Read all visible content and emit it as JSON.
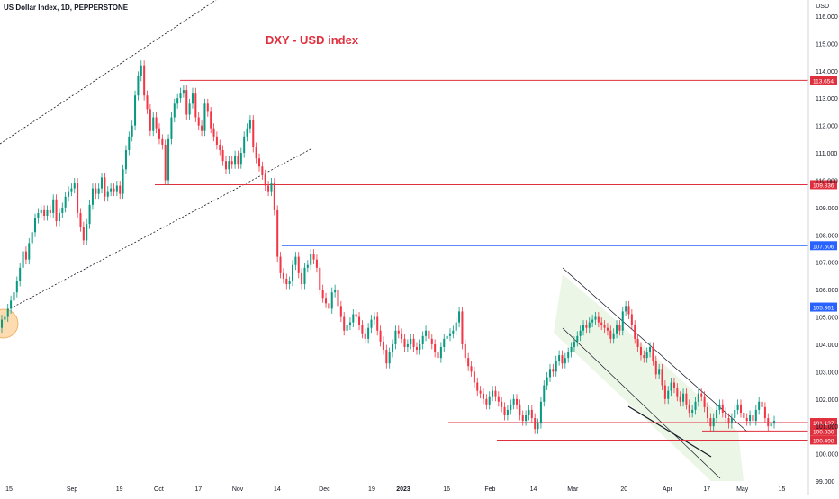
{
  "header": {
    "symbol": "US Dollar Index, 1D, PEPPERSTONE"
  },
  "axis_unit": "USD",
  "chart_data": {
    "type": "candlestick",
    "title": "DXY - USD index",
    "ylim": [
      99.0,
      116.0
    ],
    "y_ticks": [
      99.0,
      100.0,
      101.0,
      102.0,
      103.0,
      104.0,
      105.0,
      106.0,
      107.0,
      108.0,
      109.0,
      110.0,
      111.0,
      112.0,
      113.0,
      114.0,
      115.0,
      116.0
    ],
    "x_ticks": [
      "15",
      "Sep",
      "19",
      "Oct",
      "17",
      "Nov",
      "14",
      "Dec",
      "19",
      "2023",
      "16",
      "Feb",
      "14",
      "Mar",
      "20",
      "Apr",
      "17",
      "May",
      "15"
    ],
    "levels": [
      {
        "value": 113.654,
        "label": "113.654",
        "color": "#e0303e"
      },
      {
        "value": 109.836,
        "label": "109.836",
        "color": "#e0303e"
      },
      {
        "value": 107.606,
        "label": "107.606",
        "color": "#2962ff"
      },
      {
        "value": 105.361,
        "label": "105.361",
        "color": "#2962ff"
      },
      {
        "value": 101.137,
        "label": "101.137",
        "color": "#e0303e"
      },
      {
        "value": 100.83,
        "label": "100.830",
        "color": "#e0303e"
      },
      {
        "value": 100.498,
        "label": "100.498",
        "color": "#e0303e"
      }
    ],
    "closes": [
      104.9,
      105.0,
      105.3,
      105.6,
      105.9,
      106.3,
      106.8,
      107.4,
      107.1,
      107.7,
      108.1,
      108.6,
      108.8,
      108.9,
      108.7,
      108.9,
      108.8,
      109.3,
      108.5,
      108.8,
      109.0,
      109.4,
      109.6,
      109.7,
      109.9,
      108.8,
      108.3,
      107.8,
      108.4,
      109.1,
      109.7,
      109.5,
      109.7,
      110.1,
      109.4,
      109.6,
      109.7,
      109.6,
      109.8,
      109.5,
      110.4,
      111.1,
      111.6,
      112.0,
      113.1,
      113.8,
      114.2,
      113.1,
      112.6,
      111.8,
      112.3,
      111.9,
      111.5,
      111.3,
      110.0,
      111.5,
      112.3,
      112.8,
      113.0,
      113.2,
      113.3,
      112.4,
      112.8,
      113.2,
      112.3,
      112.0,
      111.8,
      112.8,
      112.5,
      111.9,
      111.6,
      111.3,
      111.1,
      110.7,
      110.4,
      110.7,
      110.6,
      110.9,
      110.6,
      111.0,
      111.6,
      111.9,
      112.2,
      111.2,
      110.8,
      110.5,
      110.2,
      109.8,
      109.6,
      109.9,
      108.9,
      107.2,
      106.6,
      106.4,
      106.2,
      106.3,
      106.9,
      107.2,
      106.6,
      106.2,
      106.8,
      106.9,
      107.3,
      107.1,
      106.8,
      106.0,
      105.7,
      105.5,
      105.3,
      105.9,
      106.0,
      105.4,
      105.0,
      104.5,
      104.7,
      104.8,
      105.1,
      105.0,
      104.7,
      104.4,
      104.2,
      104.6,
      104.9,
      105.0,
      104.5,
      104.1,
      103.8,
      103.3,
      103.7,
      104.0,
      104.5,
      104.4,
      104.2,
      103.9,
      104.0,
      104.2,
      103.9,
      103.8,
      104.0,
      104.3,
      104.5,
      104.2,
      104.0,
      103.7,
      103.5,
      103.9,
      104.2,
      104.3,
      104.4,
      104.5,
      104.8,
      105.2,
      104.0,
      103.5,
      103.2,
      103.0,
      102.6,
      102.3,
      102.2,
      102.0,
      101.8,
      102.1,
      102.3,
      102.1,
      101.9,
      101.7,
      101.4,
      101.6,
      101.8,
      102.0,
      101.8,
      101.4,
      101.2,
      101.4,
      101.6,
      101.3,
      100.9,
      101.1,
      101.9,
      102.5,
      102.8,
      103.1,
      103.0,
      103.4,
      103.6,
      103.3,
      103.5,
      103.7,
      103.9,
      104.1,
      104.3,
      104.5,
      104.7,
      104.6,
      104.8,
      104.9,
      105.0,
      104.8,
      104.7,
      104.6,
      104.5,
      104.2,
      104.4,
      104.7,
      104.5,
      105.2,
      105.4,
      105.1,
      104.7,
      104.2,
      103.9,
      103.6,
      103.5,
      103.7,
      103.9,
      103.4,
      102.9,
      103.1,
      102.5,
      102.0,
      102.3,
      102.6,
      102.4,
      102.1,
      101.9,
      102.2,
      101.8,
      101.5,
      101.6,
      101.9,
      102.2,
      102.1,
      101.7,
      101.3,
      101.0,
      101.3,
      101.6,
      101.8,
      101.5,
      101.3,
      101.1,
      101.3,
      101.6,
      101.8,
      101.5,
      101.3,
      101.2,
      101.4,
      101.2,
      101.6,
      101.9,
      101.7,
      101.3,
      101.0,
      101.1,
      101.2
    ]
  }
}
